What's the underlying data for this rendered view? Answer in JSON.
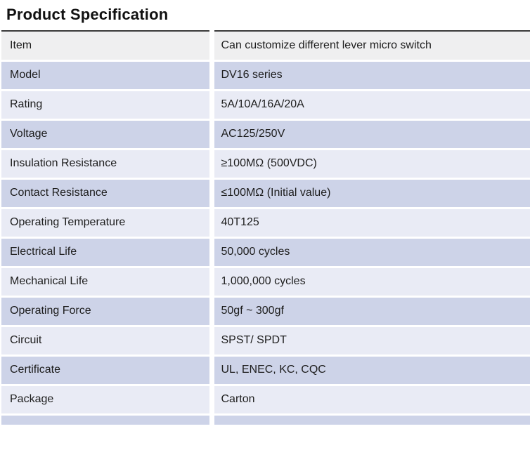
{
  "page": {
    "title": "Product Specification"
  },
  "colors": {
    "header_row_bg": "#efeff0",
    "row_alt_bg": "#cdd3e8",
    "row_bg": "#e9ebf5",
    "table_top_border": "#3a3a3a",
    "text": "#1d1d1d"
  },
  "table": {
    "rows": [
      {
        "label": "Item",
        "value": "Can customize different lever micro switch",
        "tone": "gray"
      },
      {
        "label": "Model",
        "value": "DV16 series",
        "tone": "dark"
      },
      {
        "label": "Rating",
        "value": "5A/10A/16A/20A",
        "tone": "light"
      },
      {
        "label": "Voltage",
        "value": "AC125/250V",
        "tone": "dark"
      },
      {
        "label": "Insulation Resistance",
        "value": "≥100MΩ (500VDC)",
        "tone": "light"
      },
      {
        "label": "Contact Resistance",
        "value": "≤100MΩ (Initial value)",
        "tone": "dark"
      },
      {
        "label": "Operating Temperature",
        "value": "40T125",
        "tone": "light"
      },
      {
        "label": "Electrical Life",
        "value": "50,000 cycles",
        "tone": "dark"
      },
      {
        "label": "Mechanical Life",
        "value": "1,000,000 cycles",
        "tone": "light"
      },
      {
        "label": "Operating Force",
        "value": "50gf ~  300gf",
        "tone": "dark"
      },
      {
        "label": "Circuit",
        "value": "SPST/ SPDT",
        "tone": "light"
      },
      {
        "label": "Certificate",
        "value": "UL, ENEC, KC, CQC",
        "tone": "dark"
      },
      {
        "label": "Package",
        "value": "Carton",
        "tone": "light"
      }
    ]
  }
}
